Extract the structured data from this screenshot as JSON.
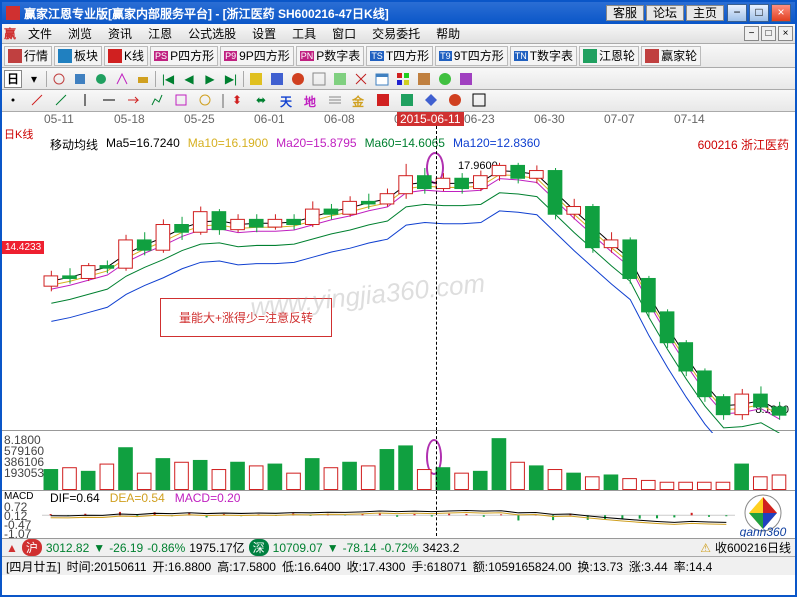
{
  "title": "赢家江恩专业版[赢家内部服务平台]  -  [浙江医药    SH600216-47日K线]",
  "headerButtons": {
    "kefu": "客服",
    "luntan": "论坛",
    "zhuye": "主页"
  },
  "menus": [
    "文件",
    "浏览",
    "资讯",
    "江恩",
    "公式选股",
    "设置",
    "工具",
    "窗口",
    "交易委托",
    "帮助"
  ],
  "toolbar1": [
    {
      "label": "行情",
      "icon": "#c04040"
    },
    {
      "label": "板块",
      "icon": "#2080c0"
    },
    {
      "label": "K线",
      "icon": "#d02020"
    },
    {
      "label": "P四方形",
      "icon": "#c02080",
      "pre": "PS"
    },
    {
      "label": "9P四方形",
      "icon": "#c02080",
      "pre": "P9"
    },
    {
      "label": "P数字表",
      "icon": "#c02080",
      "pre": "PN"
    },
    {
      "label": "T四方形",
      "icon": "#2060c0",
      "pre": "TS"
    },
    {
      "label": "9T四方形",
      "icon": "#2060c0",
      "pre": "T9"
    },
    {
      "label": "T数字表",
      "icon": "#2060c0",
      "pre": "TN"
    },
    {
      "label": "江恩轮",
      "icon": "#20a060"
    },
    {
      "label": "赢家轮",
      "icon": "#c04040"
    }
  ],
  "dates": [
    "05-11",
    "05-18",
    "05-25",
    "06-01",
    "06-08",
    "06-15",
    "06-23",
    "06-30",
    "07-07",
    "07-14"
  ],
  "highlightDate": "2015-06-11",
  "leftLabel": "日K线",
  "maLabel": "移动均线",
  "mas": [
    {
      "name": "Ma5",
      "v": "16.7240",
      "c": "#000"
    },
    {
      "name": "Ma10",
      "v": "16.1900",
      "c": "#d6b020"
    },
    {
      "name": "Ma20",
      "v": "15.8795",
      "c": "#c020c0"
    },
    {
      "name": "Ma60",
      "v": "14.6065",
      "c": "#008030"
    },
    {
      "name": "Ma120",
      "v": "12.8360",
      "c": "#1040d0"
    }
  ],
  "stockCode": "600216",
  "stockName": "浙江医药",
  "priceLeft": "14.4233",
  "peakPrice": "17.9600",
  "rightPrice": "8.1800",
  "annotation": "量能大+涨得少=注意反转",
  "candles": [
    {
      "o": 13.2,
      "c": 13.6,
      "h": 13.8,
      "l": 13.0
    },
    {
      "o": 13.6,
      "c": 13.5,
      "h": 13.9,
      "l": 13.3
    },
    {
      "o": 13.5,
      "c": 14.0,
      "h": 14.1,
      "l": 13.4
    },
    {
      "o": 14.0,
      "c": 13.9,
      "h": 14.2,
      "l": 13.7
    },
    {
      "o": 13.9,
      "c": 15.0,
      "h": 15.2,
      "l": 13.8
    },
    {
      "o": 15.0,
      "c": 14.6,
      "h": 15.3,
      "l": 14.4
    },
    {
      "o": 14.6,
      "c": 15.6,
      "h": 15.8,
      "l": 14.5
    },
    {
      "o": 15.6,
      "c": 15.3,
      "h": 15.9,
      "l": 15.0
    },
    {
      "o": 15.3,
      "c": 16.1,
      "h": 16.3,
      "l": 15.2
    },
    {
      "o": 16.1,
      "c": 15.4,
      "h": 16.2,
      "l": 15.2
    },
    {
      "o": 15.4,
      "c": 15.8,
      "h": 16.0,
      "l": 15.3
    },
    {
      "o": 15.8,
      "c": 15.5,
      "h": 16.0,
      "l": 15.3
    },
    {
      "o": 15.5,
      "c": 15.8,
      "h": 16.0,
      "l": 15.4
    },
    {
      "o": 15.8,
      "c": 15.6,
      "h": 16.0,
      "l": 15.4
    },
    {
      "o": 15.6,
      "c": 16.2,
      "h": 16.5,
      "l": 15.5
    },
    {
      "o": 16.2,
      "c": 16.0,
      "h": 16.4,
      "l": 15.8
    },
    {
      "o": 16.0,
      "c": 16.5,
      "h": 16.7,
      "l": 15.9
    },
    {
      "o": 16.5,
      "c": 16.4,
      "h": 16.8,
      "l": 16.2
    },
    {
      "o": 16.4,
      "c": 16.8,
      "h": 17.0,
      "l": 16.3
    },
    {
      "o": 16.8,
      "c": 17.5,
      "h": 17.96,
      "l": 16.6
    },
    {
      "o": 17.5,
      "c": 17.0,
      "h": 17.8,
      "l": 16.8
    },
    {
      "o": 17.0,
      "c": 17.4,
      "h": 17.6,
      "l": 16.9
    },
    {
      "o": 17.4,
      "c": 17.0,
      "h": 17.6,
      "l": 16.8
    },
    {
      "o": 17.0,
      "c": 17.5,
      "h": 17.7,
      "l": 16.9
    },
    {
      "o": 17.5,
      "c": 17.9,
      "h": 18.0,
      "l": 17.3
    },
    {
      "o": 17.9,
      "c": 17.4,
      "h": 18.0,
      "l": 17.2
    },
    {
      "o": 17.4,
      "c": 17.7,
      "h": 17.9,
      "l": 17.2
    },
    {
      "o": 17.7,
      "c": 16.0,
      "h": 17.8,
      "l": 15.8
    },
    {
      "o": 16.0,
      "c": 16.3,
      "h": 16.6,
      "l": 15.8
    },
    {
      "o": 16.3,
      "c": 14.7,
      "h": 16.4,
      "l": 14.5
    },
    {
      "o": 14.7,
      "c": 15.0,
      "h": 15.3,
      "l": 14.5
    },
    {
      "o": 15.0,
      "c": 13.5,
      "h": 15.1,
      "l": 13.3
    },
    {
      "o": 13.5,
      "c": 12.2,
      "h": 13.6,
      "l": 12.0
    },
    {
      "o": 12.2,
      "c": 11.0,
      "h": 12.3,
      "l": 10.8
    },
    {
      "o": 11.0,
      "c": 9.9,
      "h": 11.1,
      "l": 9.7
    },
    {
      "o": 9.9,
      "c": 8.9,
      "h": 10.0,
      "l": 8.7
    },
    {
      "o": 8.9,
      "c": 8.2,
      "h": 9.0,
      "l": 8.0
    },
    {
      "o": 8.2,
      "c": 9.0,
      "h": 9.2,
      "l": 8.0
    },
    {
      "o": 9.0,
      "c": 8.5,
      "h": 9.3,
      "l": 8.3
    },
    {
      "o": 8.5,
      "c": 8.18,
      "h": 8.7,
      "l": 8.0
    }
  ],
  "priceRange": {
    "min": 7.5,
    "max": 18.5
  },
  "volY": [
    "579160",
    "386106",
    "193053"
  ],
  "volTop": "8.1800",
  "vols": [
    22,
    24,
    20,
    28,
    46,
    18,
    34,
    30,
    32,
    22,
    30,
    26,
    28,
    18,
    34,
    24,
    30,
    26,
    44,
    48,
    22,
    24,
    18,
    20,
    56,
    30,
    26,
    22,
    18,
    14,
    16,
    12,
    10,
    8,
    8,
    8,
    8,
    28,
    14,
    16
  ],
  "volColors": [
    "c",
    "b",
    "c",
    "b",
    "c",
    "b",
    "c",
    "b",
    "c",
    "b",
    "c",
    "b",
    "c",
    "b",
    "c",
    "b",
    "c",
    "b",
    "c",
    "c",
    "b",
    "c",
    "b",
    "c",
    "c",
    "b",
    "c",
    "b",
    "c",
    "b",
    "c",
    "b",
    "b",
    "b",
    "b",
    "b",
    "b",
    "c",
    "b",
    "b"
  ],
  "macd": {
    "label": "MACD",
    "dif": "DIF=0.64",
    "dea": "DEA=0.54",
    "macd": "MACD=0.20",
    "yl": [
      "0.72",
      "0.12",
      "-0.47",
      "-1.07"
    ]
  },
  "status": {
    "hu": "沪",
    "huVal": "3012.82",
    "huChg": "-26.19",
    "huPct": "-0.86%",
    "huAmt": "1975.17亿",
    "shen": "深",
    "shenVal": "10709.07",
    "shenChg": "-78.14",
    "shenPct": "-0.72%",
    "shenAmt": "3423.2",
    "right": "收600216日线"
  },
  "bottom": {
    "date": "[四月廿五]",
    "time": "时间:20150611",
    "open": "开:16.8800",
    "high": "高:17.5800",
    "low": "低:16.6400",
    "close": "收:17.4300",
    "hand": "手:618071",
    "amt": "额:1059165824.00",
    "huan": "换:13.73",
    "zhang": "涨:3.44",
    "rate": "率:14.4"
  },
  "colors": {
    "up": "#d03030",
    "dn": "#008030",
    "cfill": "#10a040",
    "cline": "#d02020"
  }
}
